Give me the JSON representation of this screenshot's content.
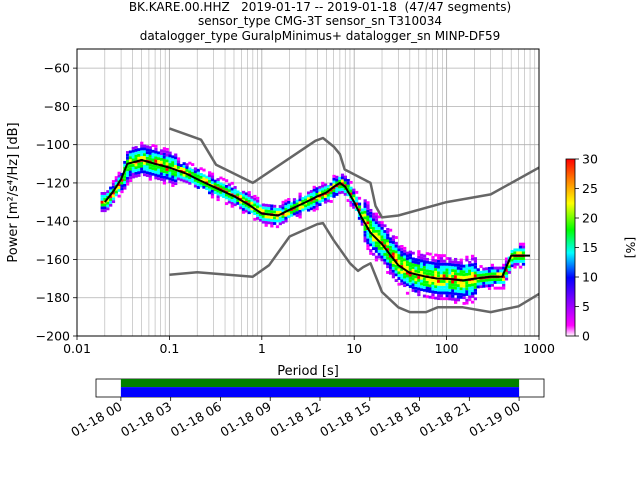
{
  "titles": {
    "line1": "BK.KARE.00.HHZ   2019-01-17 -- 2019-01-18  (47/47 segments)",
    "line2": "sensor_type CMG-3T sensor_sn T310034",
    "line3": "datalogger_type GuralpMinimus+ datalogger_sn MINP-DF59"
  },
  "chart_data": [
    {
      "type": "heatmap",
      "title": "BK.KARE.00.HHZ   2019-01-17 -- 2019-01-18  (47/47 segments)",
      "xlabel": "Period [s]",
      "ylabel": "Power [m²/s⁴/Hz] [dB]",
      "xscale": "log",
      "xlim": [
        0.01,
        1000
      ],
      "ylim": [
        -200,
        -50
      ],
      "x_ticks": [
        0.01,
        0.1,
        1,
        10,
        100,
        1000
      ],
      "x_tick_labels": [
        "0.01",
        "0.1",
        "1",
        "10",
        "100",
        "1000"
      ],
      "y_ticks": [
        -200,
        -180,
        -160,
        -140,
        -120,
        -100,
        -80,
        -60
      ],
      "y_tick_labels": [
        "−200",
        "−180",
        "−160",
        "−140",
        "−120",
        "−100",
        "−80",
        "−60"
      ],
      "grid": true,
      "colorbar": {
        "label": "[%]",
        "range": [
          0,
          30
        ],
        "ticks": [
          0,
          5,
          10,
          15,
          20,
          25,
          30
        ],
        "tick_labels": [
          "0",
          "5",
          "10",
          "15",
          "20",
          "25",
          "30"
        ],
        "colors": [
          "#ffffff",
          "#ff00ff",
          "#0000ff",
          "#00ffff",
          "#00ff00",
          "#ffff00",
          "#ff8000",
          "#ff0000"
        ]
      },
      "series": [
        {
          "name": "",
          "color": "#000000",
          "x": [
            0.02,
            0.025,
            0.03,
            0.035,
            0.05,
            0.07,
            0.1,
            0.15,
            0.2,
            0.3,
            0.5,
            0.7,
            1.0,
            1.5,
            2,
            3,
            4,
            5,
            6,
            7,
            8,
            10,
            12,
            15,
            20,
            30,
            40,
            60,
            80,
            100,
            150,
            200,
            300,
            400,
            500,
            600,
            800
          ],
          "y": [
            -130,
            -124,
            -118,
            -110,
            -108,
            -110,
            -112,
            -115,
            -118,
            -122,
            -127,
            -131,
            -136,
            -137,
            -134,
            -130,
            -127,
            -125,
            -122,
            -120,
            -122,
            -130,
            -138,
            -146,
            -152,
            -163,
            -167,
            -169,
            -170,
            -170,
            -171,
            -170,
            -169,
            -169,
            -158,
            -158,
            -158
          ]
        },
        {
          "name": "",
          "color": "#666666",
          "x": [
            0.1,
            0.22,
            0.32,
            0.8,
            3.8,
            4.6,
            6.0,
            7.0,
            7.9,
            15.0,
            17.0,
            20.0,
            30.0,
            100.0,
            300.0,
            1000.0
          ],
          "y": [
            -91.5,
            -97.4,
            -110.5,
            -120.0,
            -98.0,
            -96.5,
            -101.0,
            -105.0,
            -113.0,
            -120.0,
            -132.0,
            -138.0,
            -137.0,
            -130.0,
            -126.0,
            -112.0
          ]
        },
        {
          "name": "",
          "color": "#666666",
          "x": [
            0.1,
            0.2,
            0.8,
            1.2,
            2.0,
            4.0,
            4.6,
            6.0,
            9.0,
            11.0,
            12.5,
            15.0,
            20.0,
            30.0,
            40.0,
            60.0,
            80.0,
            100.0,
            150.0,
            300.0,
            600.0,
            1000.0
          ],
          "y": [
            -168.0,
            -166.7,
            -169.0,
            -163.0,
            -148.0,
            -141.5,
            -141.0,
            -150.0,
            -162.0,
            -166.0,
            -164.0,
            -162.0,
            -177.0,
            -185.0,
            -187.5,
            -187.5,
            -185.0,
            -185.0,
            -185.0,
            -187.5,
            -184.5,
            -178.0
          ]
        }
      ],
      "density_band": {
        "period_start": 0.018,
        "period_end": 700
      }
    },
    {
      "type": "bar",
      "title": "",
      "xlabel": "",
      "ylabel": "",
      "x_tick_labels": [
        "01-18 00",
        "01-18 03",
        "01-18 06",
        "01-18 09",
        "01-18 12",
        "01-18 15",
        "01-18 18",
        "01-18 21",
        "01-19 00"
      ],
      "xlim": [
        "01-17 22:30",
        "01-19 01:30"
      ],
      "coverage": [
        {
          "name": "",
          "start": "01-18 00",
          "end": "01-19 00",
          "color": "#008000"
        },
        {
          "name": "",
          "start": "01-18 00",
          "end": "01-19 00",
          "color": "#0000ff"
        }
      ]
    }
  ]
}
